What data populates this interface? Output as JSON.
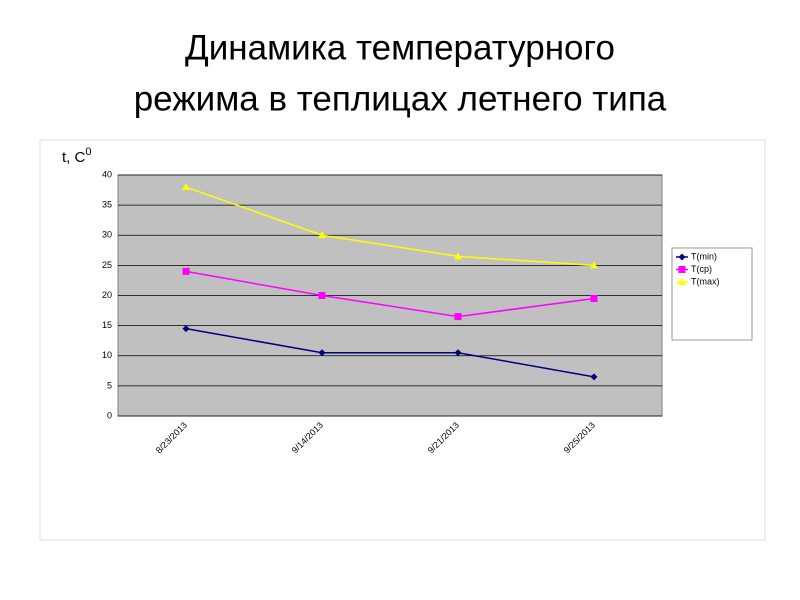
{
  "chart_data": {
    "type": "line",
    "title_lines": [
      "Динамика температурного",
      "режима в теплицах летнего типа"
    ],
    "y_label": "t, C",
    "y_label_sup": "0",
    "categories": [
      "8/23/2013",
      "9/14/2013",
      "9/21/2013",
      "9/25/2013"
    ],
    "series": [
      {
        "name": "T(min)",
        "color": "#000080",
        "marker": "diamond",
        "values": [
          14.5,
          10.5,
          10.5,
          6.5
        ]
      },
      {
        "name": "T(cp)",
        "color": "#ff00ff",
        "marker": "square",
        "values": [
          24,
          20,
          16.5,
          19.5
        ]
      },
      {
        "name": "T(max)",
        "color": "#ffff00",
        "marker": "triangle",
        "values": [
          38,
          30,
          26.5,
          25
        ]
      }
    ],
    "ylim": [
      0,
      40
    ],
    "yticks": [
      0,
      5,
      10,
      15,
      20,
      25,
      30,
      35,
      40
    ],
    "grid": true,
    "legend": "right"
  }
}
